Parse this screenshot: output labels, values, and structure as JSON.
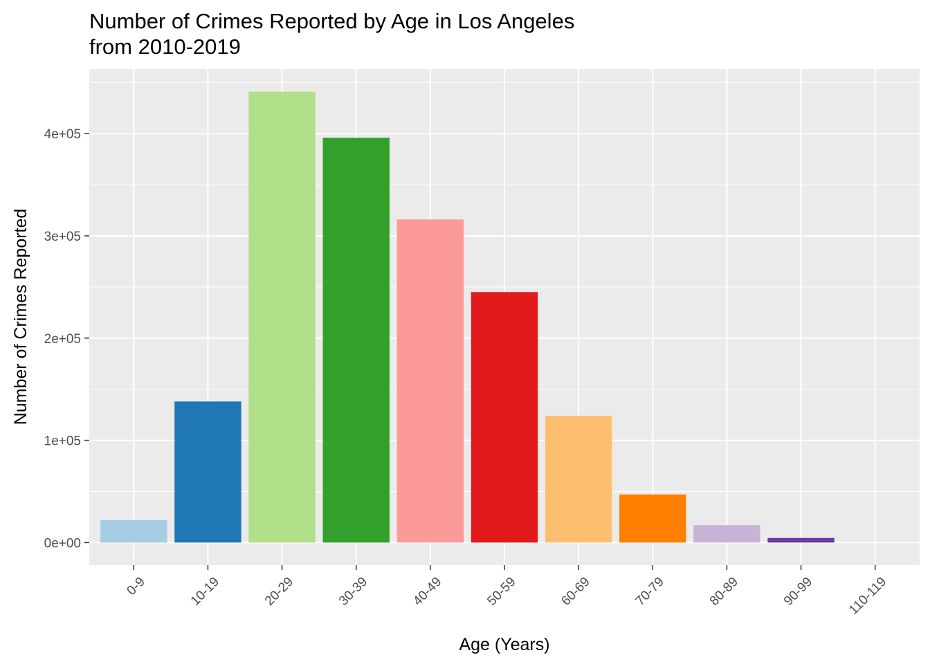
{
  "chart_data": {
    "type": "bar",
    "title_lines": [
      "Number of Crimes Reported by Age in Los Angeles",
      "from 2010-2019"
    ],
    "xlabel": "Age (Years)",
    "ylabel": "Number of Crimes Reported",
    "categories": [
      "0-9",
      "10-19",
      "20-29",
      "30-39",
      "40-49",
      "50-59",
      "60-69",
      "70-79",
      "80-89",
      "90-99",
      "110-119"
    ],
    "values": [
      22000,
      138000,
      441000,
      396000,
      316000,
      245000,
      124000,
      47000,
      17000,
      4500,
      0
    ],
    "colors": [
      "#a6cee3",
      "#1f78b4",
      "#b2df8a",
      "#33a02c",
      "#fb9a99",
      "#e31a1c",
      "#fdbf6f",
      "#ff7f00",
      "#cab2d6",
      "#6a3d9a",
      "#ffff99"
    ],
    "yticks": [
      0,
      100000,
      200000,
      300000,
      400000
    ],
    "ytick_labels": [
      "0e+00",
      "1e+05",
      "2e+05",
      "3e+05",
      "4e+05"
    ],
    "ylim": [
      -22050,
      463050
    ],
    "panel_background": "#ebebeb",
    "grid": true,
    "legend": "none"
  }
}
